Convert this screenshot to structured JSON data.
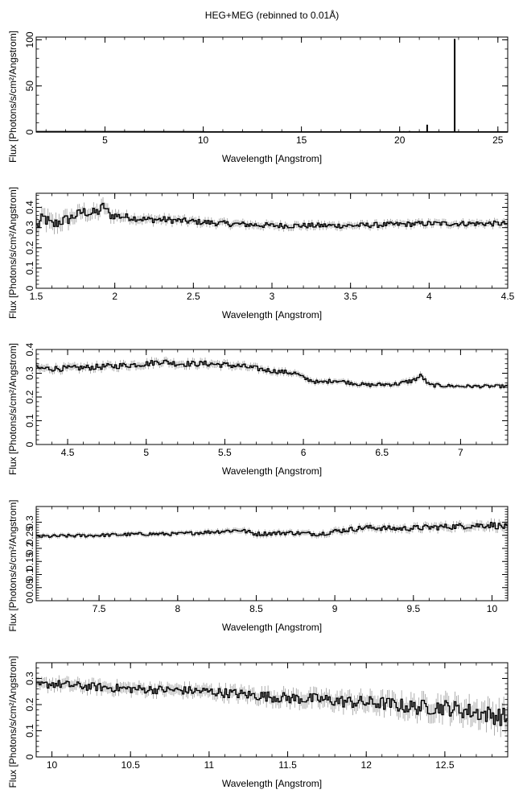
{
  "title": "HEG+MEG (rebinned to 0.01Å)",
  "chart_data": [
    {
      "type": "line",
      "xlabel": "Wavelength [Angstrom]",
      "ylabel": "Flux [Photons/s/cm²/Angstrom]",
      "xlim": [
        1.5,
        25.5
      ],
      "ylim": [
        0,
        103
      ],
      "xticks": [
        5,
        10,
        15,
        20,
        25
      ],
      "yticks": [
        0,
        50,
        100
      ],
      "grid": false,
      "series": [
        {
          "x": [
            1.5,
            5,
            10,
            15,
            19.5,
            20.2,
            20.5,
            20.8,
            21.4,
            22.8,
            25.5
          ],
          "y": [
            0.3,
            0.3,
            0.27,
            0.24,
            0.22,
            1.0,
            1.2,
            0.8,
            8.0,
            101.0,
            0.2
          ]
        }
      ]
    },
    {
      "type": "line",
      "xlabel": "Wavelength [Angstrom]",
      "ylabel": "Flux [Photons/s/cm²/Angstrom]",
      "xlim": [
        1.5,
        4.5
      ],
      "ylim": [
        0,
        0.47
      ],
      "xticks": [
        1.5,
        2,
        2.5,
        3,
        3.5,
        4,
        4.5
      ],
      "yticks": [
        0,
        0.1,
        0.2,
        0.3,
        0.4
      ],
      "grid": false,
      "series": [
        {
          "x": [
            1.5,
            1.55,
            1.6,
            1.65,
            1.7,
            1.75,
            1.8,
            1.85,
            1.9,
            1.93,
            1.97,
            2.0,
            2.1,
            2.2,
            2.3,
            2.5,
            2.7,
            3.0,
            3.5,
            4.0,
            4.5
          ],
          "y": [
            0.3,
            0.35,
            0.31,
            0.33,
            0.34,
            0.36,
            0.38,
            0.37,
            0.38,
            0.41,
            0.36,
            0.36,
            0.35,
            0.34,
            0.34,
            0.33,
            0.32,
            0.31,
            0.31,
            0.32,
            0.32
          ],
          "errors": [
            0.04,
            0.04,
            0.04,
            0.035,
            0.035,
            0.03,
            0.03,
            0.03,
            0.03,
            0.03,
            0.025,
            0.025,
            0.02,
            0.02,
            0.02,
            0.018,
            0.017,
            0.017,
            0.016,
            0.016,
            0.016
          ]
        }
      ]
    },
    {
      "type": "line",
      "xlabel": "Wavelength [Angstrom]",
      "ylabel": "Flux [Photons/s/cm²/Angstrom]",
      "xlim": [
        4.3,
        7.3
      ],
      "ylim": [
        0,
        0.4
      ],
      "xticks": [
        4.5,
        5,
        5.5,
        6,
        6.5,
        7
      ],
      "yticks": [
        0,
        0.1,
        0.2,
        0.3,
        0.4
      ],
      "grid": false,
      "series": [
        {
          "x": [
            4.3,
            4.5,
            4.8,
            5.0,
            5.1,
            5.2,
            5.4,
            5.6,
            5.8,
            5.95,
            6.0,
            6.1,
            6.2,
            6.4,
            6.6,
            6.7,
            6.75,
            6.8,
            7.0,
            7.3
          ],
          "y": [
            0.32,
            0.32,
            0.33,
            0.34,
            0.35,
            0.34,
            0.34,
            0.33,
            0.31,
            0.3,
            0.28,
            0.26,
            0.27,
            0.25,
            0.255,
            0.27,
            0.29,
            0.25,
            0.245,
            0.245
          ],
          "errors": [
            0.015,
            0.015,
            0.015,
            0.015,
            0.015,
            0.015,
            0.015,
            0.015,
            0.012,
            0.012,
            0.012,
            0.01,
            0.01,
            0.01,
            0.01,
            0.012,
            0.012,
            0.01,
            0.008,
            0.008
          ]
        }
      ]
    },
    {
      "type": "line",
      "xlabel": "Wavelength [Angstrom]",
      "ylabel": "Flux [Photons/s/cm²/Angstrom]",
      "xlim": [
        7.1,
        10.1
      ],
      "ylim": [
        0,
        0.36
      ],
      "xticks": [
        7.5,
        8,
        8.5,
        9,
        9.5,
        10
      ],
      "yticks": [
        0,
        0.05,
        0.1,
        0.15,
        0.2,
        0.25,
        0.3
      ],
      "grid": false,
      "series": [
        {
          "x": [
            7.1,
            7.5,
            7.8,
            8.0,
            8.4,
            8.5,
            8.7,
            8.9,
            9.0,
            9.2,
            9.4,
            9.6,
            9.8,
            10.0,
            10.1
          ],
          "y": [
            0.245,
            0.25,
            0.255,
            0.255,
            0.27,
            0.255,
            0.26,
            0.255,
            0.265,
            0.28,
            0.275,
            0.28,
            0.285,
            0.29,
            0.28
          ],
          "errors": [
            0.008,
            0.008,
            0.008,
            0.008,
            0.01,
            0.01,
            0.01,
            0.01,
            0.012,
            0.012,
            0.012,
            0.014,
            0.014,
            0.016,
            0.016
          ]
        }
      ]
    },
    {
      "type": "line",
      "xlabel": "Wavelength [Angstrom]",
      "ylabel": "Flux [Photons/s/cm²/Angstrom]",
      "xlim": [
        9.9,
        12.9
      ],
      "ylim": [
        0,
        0.36
      ],
      "xticks": [
        10,
        10.5,
        11,
        11.5,
        12,
        12.5
      ],
      "yticks": [
        0,
        0.1,
        0.2,
        0.3
      ],
      "grid": false,
      "series": [
        {
          "x": [
            9.9,
            10.0,
            10.2,
            10.5,
            10.8,
            11.0,
            11.3,
            11.5,
            11.7,
            11.9,
            12.1,
            12.3,
            12.5,
            12.7,
            12.9
          ],
          "y": [
            0.27,
            0.28,
            0.27,
            0.26,
            0.255,
            0.25,
            0.235,
            0.225,
            0.22,
            0.21,
            0.205,
            0.19,
            0.19,
            0.17,
            0.15
          ],
          "errors": [
            0.02,
            0.02,
            0.02,
            0.02,
            0.02,
            0.022,
            0.024,
            0.026,
            0.028,
            0.03,
            0.032,
            0.035,
            0.038,
            0.04,
            0.045
          ]
        }
      ]
    }
  ]
}
